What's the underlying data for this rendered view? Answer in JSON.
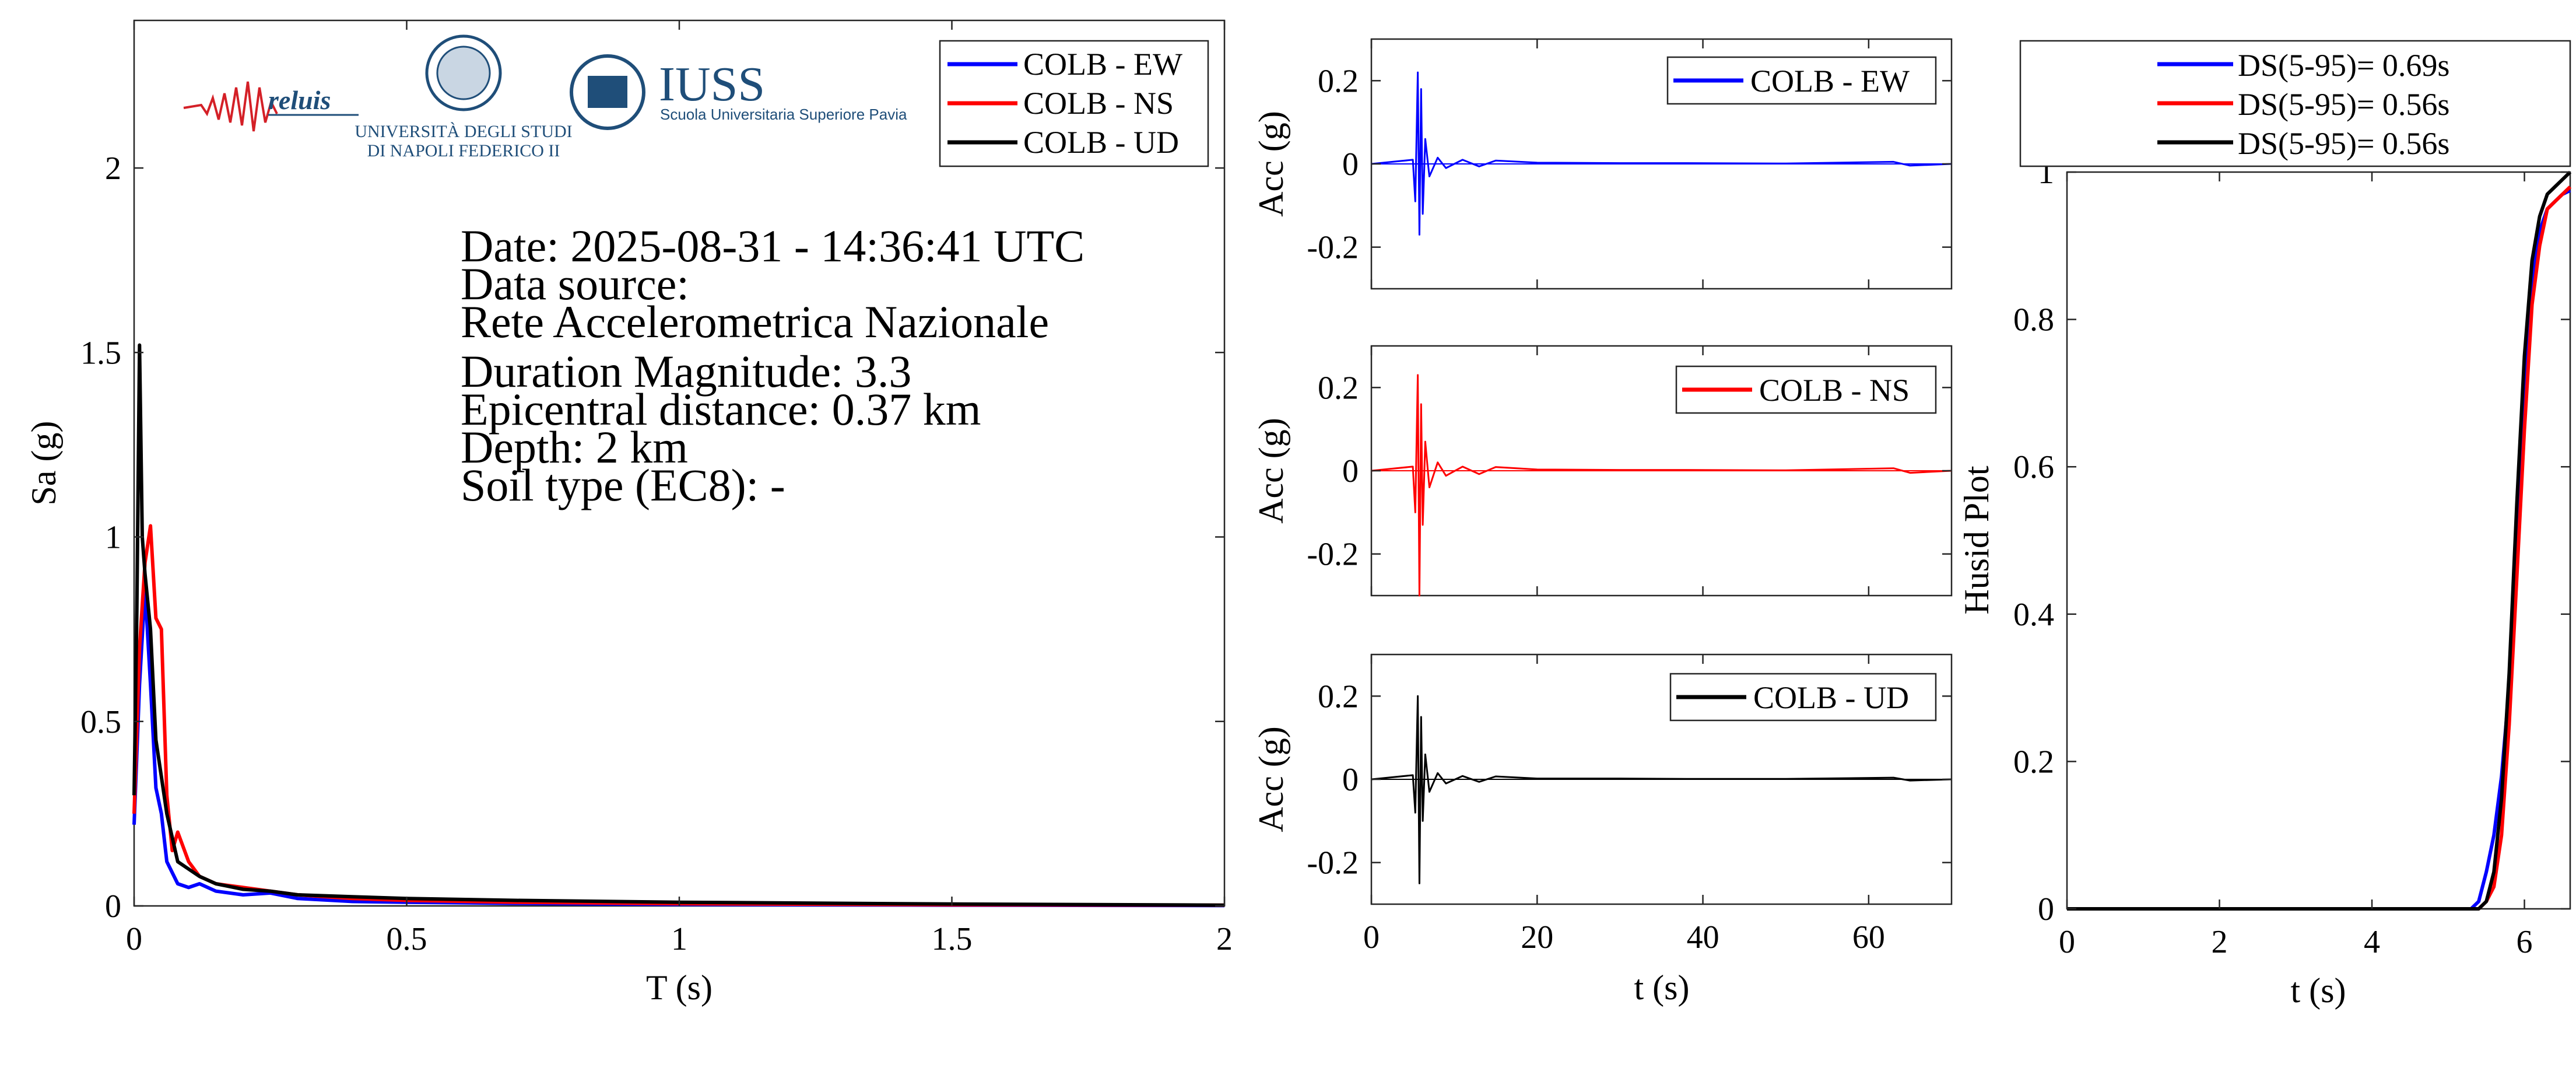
{
  "colors": {
    "ew": "#0000ff",
    "ns": "#ff0000",
    "ud": "#000000",
    "logo_blue": "#1f4e79"
  },
  "logos": {
    "reluis": "reluis",
    "unina_line1": "UNIVERSITÀ DEGLI STUDI",
    "unina_line2": "DI NAPOLI FEDERICO II",
    "iuss": "IUSS",
    "iuss_sub": "Scuola Universitaria Superiore Pavia"
  },
  "info": {
    "date": "Date: 2025-08-31 - 14:36:41 UTC",
    "source_label": "Data source:",
    "source": "Rete Accelerometrica Nazionale",
    "magnitude": "Duration Magnitude: 3.3",
    "distance": "Epicentral distance: 0.37 km",
    "depth": "Depth: 2 km",
    "soil": "Soil type (EC8): -"
  },
  "chart_data": [
    {
      "id": "spectrum",
      "type": "line",
      "xlabel": "T (s)",
      "ylabel": "Sa (g)",
      "xlim": [
        0,
        2
      ],
      "ylim": [
        0,
        2.4
      ],
      "xticks": [
        0,
        0.5,
        1,
        1.5,
        2
      ],
      "xtick_labels": [
        "0",
        "0.5",
        "1",
        "1.5",
        "2"
      ],
      "yticks": [
        0,
        0.5,
        1,
        1.5,
        2
      ],
      "ytick_labels": [
        "0",
        "0.5",
        "1",
        "1.5",
        "2"
      ],
      "legend": "top-right",
      "series": [
        {
          "name": "COLB - EW",
          "color": "#0000ff",
          "x": [
            0,
            0.01,
            0.02,
            0.03,
            0.04,
            0.05,
            0.06,
            0.08,
            0.1,
            0.12,
            0.15,
            0.2,
            0.25,
            0.3,
            0.4,
            0.5,
            0.7,
            1.0,
            1.5,
            2.0
          ],
          "y": [
            0.22,
            0.6,
            0.86,
            0.6,
            0.32,
            0.25,
            0.12,
            0.06,
            0.05,
            0.06,
            0.04,
            0.03,
            0.035,
            0.02,
            0.012,
            0.01,
            0.007,
            0.004,
            0.002,
            0.001
          ]
        },
        {
          "name": "COLB - NS",
          "color": "#ff0000",
          "x": [
            0,
            0.01,
            0.02,
            0.03,
            0.04,
            0.05,
            0.06,
            0.07,
            0.08,
            0.1,
            0.12,
            0.15,
            0.2,
            0.25,
            0.3,
            0.4,
            0.5,
            0.7,
            1.0,
            1.5,
            2.0
          ],
          "y": [
            0.25,
            0.7,
            0.93,
            1.03,
            0.78,
            0.75,
            0.3,
            0.15,
            0.2,
            0.12,
            0.08,
            0.06,
            0.05,
            0.04,
            0.03,
            0.02,
            0.015,
            0.01,
            0.006,
            0.003,
            0.002
          ]
        },
        {
          "name": "COLB - UD",
          "color": "#000000",
          "x": [
            0,
            0.005,
            0.01,
            0.015,
            0.02,
            0.03,
            0.04,
            0.05,
            0.06,
            0.08,
            0.1,
            0.12,
            0.15,
            0.2,
            0.25,
            0.3,
            0.4,
            0.5,
            0.7,
            1.0,
            1.5,
            2.0
          ],
          "y": [
            0.3,
            0.8,
            1.52,
            1.0,
            0.9,
            0.75,
            0.45,
            0.35,
            0.25,
            0.12,
            0.1,
            0.08,
            0.06,
            0.045,
            0.04,
            0.03,
            0.025,
            0.02,
            0.015,
            0.01,
            0.005,
            0.002
          ]
        }
      ]
    },
    {
      "id": "acc_ew",
      "type": "line",
      "xlabel": "",
      "ylabel": "Acc (g)",
      "xlim": [
        0,
        70
      ],
      "ylim": [
        -0.3,
        0.3
      ],
      "xticks": [
        0,
        20,
        40,
        60
      ],
      "yticks": [
        -0.2,
        0,
        0.2
      ],
      "ytick_labels": [
        "-0.2",
        "0",
        "0.2"
      ],
      "legend": "top-right",
      "series": [
        {
          "name": "COLB - EW",
          "color": "#0000ff",
          "x": [
            0,
            5,
            5.3,
            5.6,
            5.8,
            6.0,
            6.2,
            6.5,
            7.0,
            8.0,
            9.0,
            11.0,
            13.0,
            15.0,
            20.0,
            30.0,
            38.0,
            50.0,
            63.0,
            65.0,
            70.0
          ],
          "y": [
            0,
            0.01,
            -0.09,
            0.22,
            -0.17,
            0.18,
            -0.12,
            0.06,
            -0.03,
            0.015,
            -0.01,
            0.01,
            -0.006,
            0.008,
            0.003,
            0.002,
            0.002,
            0.001,
            0.005,
            -0.004,
            0
          ]
        }
      ]
    },
    {
      "id": "acc_ns",
      "type": "line",
      "xlabel": "",
      "ylabel": "Acc (g)",
      "xlim": [
        0,
        70
      ],
      "ylim": [
        -0.3,
        0.3
      ],
      "xticks": [
        0,
        20,
        40,
        60
      ],
      "yticks": [
        -0.2,
        0,
        0.2
      ],
      "ytick_labels": [
        "-0.2",
        "0",
        "0.2"
      ],
      "legend": "top-right",
      "series": [
        {
          "name": "COLB - NS",
          "color": "#ff0000",
          "x": [
            0,
            5,
            5.3,
            5.6,
            5.8,
            6.0,
            6.2,
            6.5,
            7.0,
            8.0,
            9.0,
            11.0,
            13.0,
            15.0,
            20.0,
            30.0,
            38.0,
            50.0,
            63.0,
            65.0,
            70.0
          ],
          "y": [
            0,
            0.01,
            -0.1,
            0.23,
            -0.3,
            0.16,
            -0.13,
            0.07,
            -0.04,
            0.02,
            -0.012,
            0.01,
            -0.008,
            0.009,
            0.003,
            0.002,
            0.002,
            0.001,
            0.006,
            -0.005,
            0
          ]
        }
      ]
    },
    {
      "id": "acc_ud",
      "type": "line",
      "xlabel": "t (s)",
      "ylabel": "Acc (g)",
      "xlim": [
        0,
        70
      ],
      "ylim": [
        -0.3,
        0.3
      ],
      "xticks": [
        0,
        20,
        40,
        60
      ],
      "xtick_labels": [
        "0",
        "20",
        "40",
        "60"
      ],
      "yticks": [
        -0.2,
        0,
        0.2
      ],
      "ytick_labels": [
        "-0.2",
        "0",
        "0.2"
      ],
      "legend": "top-right",
      "series": [
        {
          "name": "COLB - UD",
          "color": "#000000",
          "x": [
            0,
            5,
            5.3,
            5.6,
            5.8,
            6.0,
            6.2,
            6.5,
            7.0,
            8.0,
            9.0,
            11.0,
            13.0,
            15.0,
            20.0,
            30.0,
            38.0,
            50.0,
            63.0,
            65.0,
            70.0
          ],
          "y": [
            0,
            0.01,
            -0.08,
            0.2,
            -0.25,
            0.15,
            -0.1,
            0.06,
            -0.03,
            0.015,
            -0.01,
            0.008,
            -0.006,
            0.007,
            0.002,
            0.002,
            0.001,
            0.001,
            0.004,
            -0.003,
            0
          ]
        }
      ]
    },
    {
      "id": "husid",
      "type": "line",
      "xlabel": "t (s)",
      "ylabel": "Husid Plot",
      "xlim": [
        0,
        6.6
      ],
      "ylim": [
        0,
        1
      ],
      "xticks": [
        0,
        2,
        4,
        6
      ],
      "xtick_labels": [
        "0",
        "2",
        "4",
        "6"
      ],
      "yticks": [
        0,
        0.2,
        0.4,
        0.6,
        0.8,
        1
      ],
      "ytick_labels": [
        "0",
        "0.2",
        "0.4",
        "0.6",
        "0.8",
        "1"
      ],
      "legend": "top",
      "series": [
        {
          "name": "DS(5-95)= 0.69s",
          "color": "#0000ff",
          "x": [
            0,
            5.3,
            5.4,
            5.5,
            5.6,
            5.7,
            5.8,
            5.9,
            6.0,
            6.1,
            6.2,
            6.3,
            6.4,
            6.5,
            6.6
          ],
          "y": [
            0,
            0,
            0.01,
            0.05,
            0.1,
            0.18,
            0.3,
            0.5,
            0.72,
            0.85,
            0.92,
            0.95,
            0.96,
            0.97,
            0.975
          ]
        },
        {
          "name": "DS(5-95)= 0.56s",
          "color": "#ff0000",
          "x": [
            0,
            5.4,
            5.5,
            5.6,
            5.7,
            5.8,
            5.9,
            6.0,
            6.1,
            6.2,
            6.3,
            6.4,
            6.5,
            6.6
          ],
          "y": [
            0,
            0,
            0.01,
            0.03,
            0.1,
            0.25,
            0.45,
            0.65,
            0.82,
            0.9,
            0.95,
            0.96,
            0.97,
            0.98
          ]
        },
        {
          "name": "DS(5-95)= 0.56s",
          "color": "#000000",
          "x": [
            0,
            5.4,
            5.5,
            5.6,
            5.7,
            5.8,
            5.9,
            6.0,
            6.1,
            6.2,
            6.3,
            6.4,
            6.5,
            6.6
          ],
          "y": [
            0,
            0,
            0.01,
            0.05,
            0.15,
            0.32,
            0.55,
            0.75,
            0.88,
            0.94,
            0.97,
            0.98,
            0.99,
            1.0
          ]
        }
      ]
    }
  ]
}
